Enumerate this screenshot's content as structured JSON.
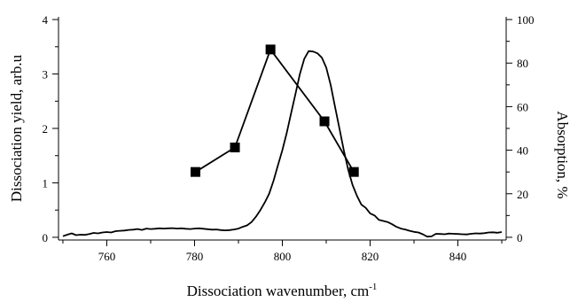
{
  "chart_data": {
    "type": "line",
    "xlabel": "Dissociation wavenumber, cm",
    "xlabel_superscript": "-1",
    "xlim": [
      749,
      851
    ],
    "xticks": [
      760,
      780,
      800,
      820,
      840
    ],
    "xtick_labels": [
      "760",
      "780",
      "800",
      "820",
      "840"
    ],
    "y_left": {
      "label": "Dissociation yield, arb.u",
      "lim": [
        -0.05,
        4.05
      ],
      "ticks": [
        0,
        1,
        2,
        3,
        4
      ],
      "tick_labels": [
        "0",
        "1",
        "2",
        "3",
        "4"
      ]
    },
    "y_right": {
      "label": "Absorption, %",
      "lim": [
        -1.25,
        101.25
      ],
      "ticks": [
        0,
        20,
        40,
        60,
        80,
        100
      ],
      "tick_labels": [
        "0",
        "20",
        "40",
        "60",
        "80",
        "100"
      ]
    },
    "grid": false,
    "legend": "none",
    "series": [
      {
        "axis": "left",
        "marker": "square",
        "color": "#000000",
        "x": [
          780.2,
          789.2,
          797.3,
          809.6,
          816.3
        ],
        "y": [
          1.2,
          1.65,
          3.45,
          2.13,
          1.2
        ]
      },
      {
        "axis": "right",
        "marker": "none",
        "color": "#000000",
        "x": [
          750,
          751,
          752,
          753,
          754,
          755,
          756,
          757,
          758,
          759,
          760,
          761,
          762,
          763,
          764,
          765,
          766,
          767,
          768,
          769,
          770,
          771,
          772,
          773,
          774,
          775,
          776,
          777,
          778,
          779,
          780,
          781,
          782,
          783,
          784,
          785,
          786,
          787,
          788,
          789,
          790,
          791,
          792,
          793,
          794,
          795,
          796,
          797,
          798,
          799,
          800,
          801,
          802,
          803,
          804,
          805,
          806,
          807,
          808,
          809,
          810,
          811,
          812,
          813,
          814,
          815,
          816,
          817,
          818,
          819,
          820,
          821,
          822,
          823,
          824,
          825,
          826,
          827,
          828,
          829,
          830,
          831,
          832,
          833,
          834,
          835,
          836,
          837,
          838,
          839,
          840,
          841,
          842,
          843,
          844,
          845,
          846,
          847,
          848,
          849,
          850
        ],
        "y": [
          0.5,
          1.2,
          1.8,
          1,
          1.2,
          1.1,
          1.5,
          2,
          1.8,
          2.2,
          2.4,
          2.2,
          2.8,
          3,
          3.1,
          3.4,
          3.5,
          3.8,
          3.4,
          4,
          3.8,
          3.9,
          4.1,
          4,
          4.1,
          4.2,
          4,
          4.1,
          3.9,
          3.8,
          4,
          4.1,
          3.9,
          3.7,
          3.5,
          3.6,
          3.3,
          3.2,
          3.3,
          3.6,
          4,
          4.8,
          5.5,
          7,
          9.5,
          12.5,
          16,
          20,
          26,
          33,
          40,
          48,
          57,
          66,
          75,
          82,
          85.5,
          85.3,
          84.5,
          82.5,
          78,
          70,
          60,
          50,
          40,
          31,
          24,
          19,
          15,
          13.5,
          11,
          10,
          8,
          7.5,
          7,
          6,
          4.8,
          4,
          3.6,
          3,
          2.5,
          2.2,
          1.4,
          0.3,
          0.4,
          1.6,
          1.5,
          1.4,
          1.7,
          1.6,
          1.5,
          1.4,
          1.3,
          1.6,
          1.8,
          1.7,
          1.9,
          2.2,
          2.3,
          2.1,
          2.4
        ]
      }
    ]
  }
}
